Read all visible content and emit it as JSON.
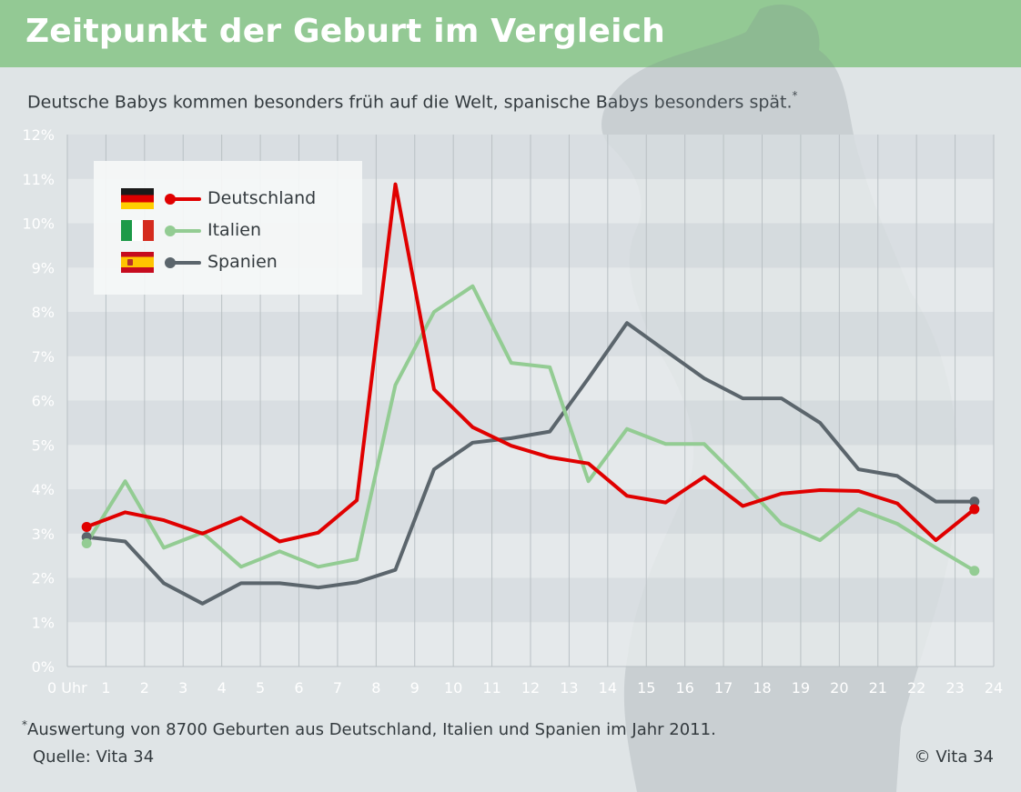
{
  "header": {
    "title": "Zeitpunkt der Geburt im Vergleich",
    "subtitle": "Deutsche Babys kommen besonders früh auf die Welt, spanische Babys besonders spät.",
    "subtitle_mark": "*"
  },
  "footer": {
    "footnote_mark": "*",
    "footnote": "Auswertung von 8700 Geburten aus Deutschland, Italien und Spanien im Jahr 2011.",
    "source": "Quelle: Vita 34",
    "copyright": "© Vita 34"
  },
  "colors": {
    "title_bar": "#93c994",
    "Deutschland": "#e00000",
    "Italien": "#93cc93",
    "Spanien": "#5b656c"
  },
  "legend": {
    "items": [
      {
        "label": "Deutschland",
        "flag": "flag-germany-icon"
      },
      {
        "label": "Italien",
        "flag": "flag-italy-icon"
      },
      {
        "label": "Spanien",
        "flag": "flag-spain-icon"
      }
    ],
    "placement": "top-left"
  },
  "chart_data": {
    "type": "line",
    "x_tick_labels": [
      "0 Uhr",
      "1",
      "2",
      "3",
      "4",
      "5",
      "6",
      "7",
      "8",
      "9",
      "10",
      "11",
      "12",
      "13",
      "14",
      "15",
      "16",
      "17",
      "18",
      "19",
      "20",
      "21",
      "22",
      "23",
      "24"
    ],
    "y_tick_labels": [
      "0%",
      "1%",
      "2%",
      "3%",
      "4%",
      "5%",
      "6%",
      "7%",
      "8%",
      "9%",
      "10%",
      "11%",
      "12%"
    ],
    "xlim": [
      0,
      24
    ],
    "ylim": [
      0,
      12
    ],
    "x": [
      0.5,
      1.5,
      2.5,
      3.5,
      4.5,
      5.5,
      6.5,
      7.5,
      8.5,
      9.5,
      10.5,
      11.5,
      12.5,
      13.5,
      14.5,
      15.5,
      16.5,
      17.5,
      18.5,
      19.5,
      20.5,
      21.5,
      22.5,
      23.5
    ],
    "series": [
      {
        "name": "Deutschland",
        "values": [
          3.15,
          3.48,
          3.3,
          3.0,
          3.36,
          2.82,
          3.02,
          3.75,
          10.88,
          6.25,
          5.4,
          4.98,
          4.72,
          4.58,
          3.85,
          3.7,
          4.28,
          3.62,
          3.9,
          3.98,
          3.96,
          3.68,
          2.85,
          3.55
        ]
      },
      {
        "name": "Italien",
        "values": [
          2.78,
          4.18,
          2.68,
          3.02,
          2.25,
          2.6,
          2.25,
          2.42,
          6.35,
          8.0,
          8.58,
          6.85,
          6.75,
          4.18,
          5.36,
          5.02,
          5.02,
          4.15,
          3.22,
          2.85,
          3.55,
          3.22,
          2.68,
          2.16
        ]
      },
      {
        "name": "Spanien",
        "values": [
          2.92,
          2.82,
          1.88,
          1.42,
          1.88,
          1.88,
          1.78,
          1.9,
          2.18,
          4.45,
          5.05,
          5.15,
          5.3,
          6.5,
          7.75,
          7.12,
          6.5,
          6.05,
          6.05,
          5.5,
          4.45,
          4.3,
          3.72,
          3.72
        ]
      }
    ],
    "endpoint_markers": true,
    "grid": true
  }
}
